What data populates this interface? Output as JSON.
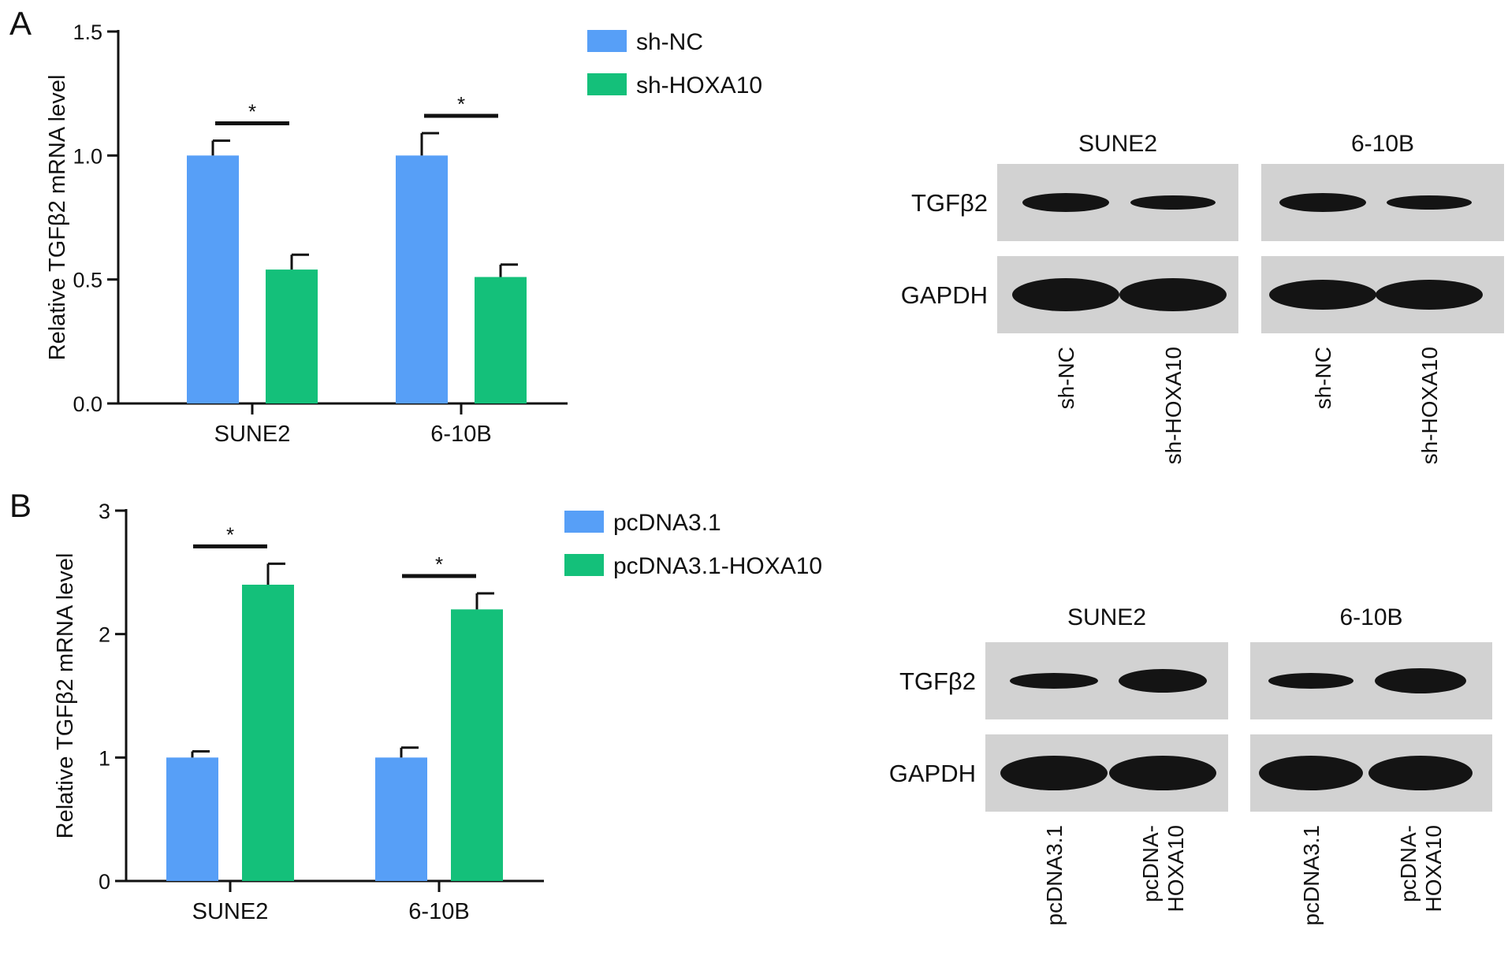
{
  "colors": {
    "blue": "#579ff7",
    "green": "#14c07a",
    "axis": "#111111",
    "blot_bg": "#d2d2d2",
    "band": "#141414"
  },
  "chart_data": [
    {
      "type": "bar",
      "panel": "A",
      "ylabel": "Relative TGFβ2 mRNA level",
      "xlabel": "",
      "ylim": [
        0,
        1.5
      ],
      "yticks": [
        "0.0",
        "0.5",
        "1.0",
        "1.5"
      ],
      "categories": [
        "SUNE2",
        "6-10B"
      ],
      "legend_position": "top-right",
      "series": [
        {
          "name": "sh-NC",
          "values": [
            1.0,
            1.0
          ],
          "errors": [
            0.06,
            0.09
          ]
        },
        {
          "name": "sh-HOXA10",
          "values": [
            0.54,
            0.51
          ],
          "errors": [
            0.06,
            0.05
          ]
        }
      ],
      "significance": [
        "*",
        "*"
      ]
    },
    {
      "type": "bar",
      "panel": "B",
      "ylabel": "Relative TGFβ2 mRNA level",
      "xlabel": "",
      "ylim": [
        0,
        3
      ],
      "yticks": [
        "0",
        "1",
        "2",
        "3"
      ],
      "categories": [
        "SUNE2",
        "6-10B"
      ],
      "legend_position": "top-right",
      "series": [
        {
          "name": "pcDNA3.1",
          "values": [
            1.0,
            1.0
          ],
          "errors": [
            0.05,
            0.08
          ]
        },
        {
          "name": "pcDNA3.1-HOXA10",
          "values": [
            2.4,
            2.2
          ],
          "errors": [
            0.17,
            0.13
          ]
        }
      ],
      "significance": [
        "*",
        "*"
      ]
    }
  ],
  "blots": [
    {
      "panel": "A",
      "groups": [
        "SUNE2",
        "6-10B"
      ],
      "rows": [
        "TGFβ2",
        "GAPDH"
      ],
      "lanes": [
        [
          "sh-NC"
        ],
        [
          "sh-HOXA10"
        ],
        [
          "sh-NC"
        ],
        [
          "sh-HOXA10"
        ]
      ]
    },
    {
      "panel": "B",
      "groups": [
        "SUNE2",
        "6-10B"
      ],
      "rows": [
        "TGFβ2",
        "GAPDH"
      ],
      "lanes": [
        [
          "pcDNA3.1"
        ],
        [
          "pcDNA-",
          "HOXA10"
        ],
        [
          "pcDNA3.1"
        ],
        [
          "pcDNA-",
          "HOXA10"
        ]
      ]
    }
  ]
}
